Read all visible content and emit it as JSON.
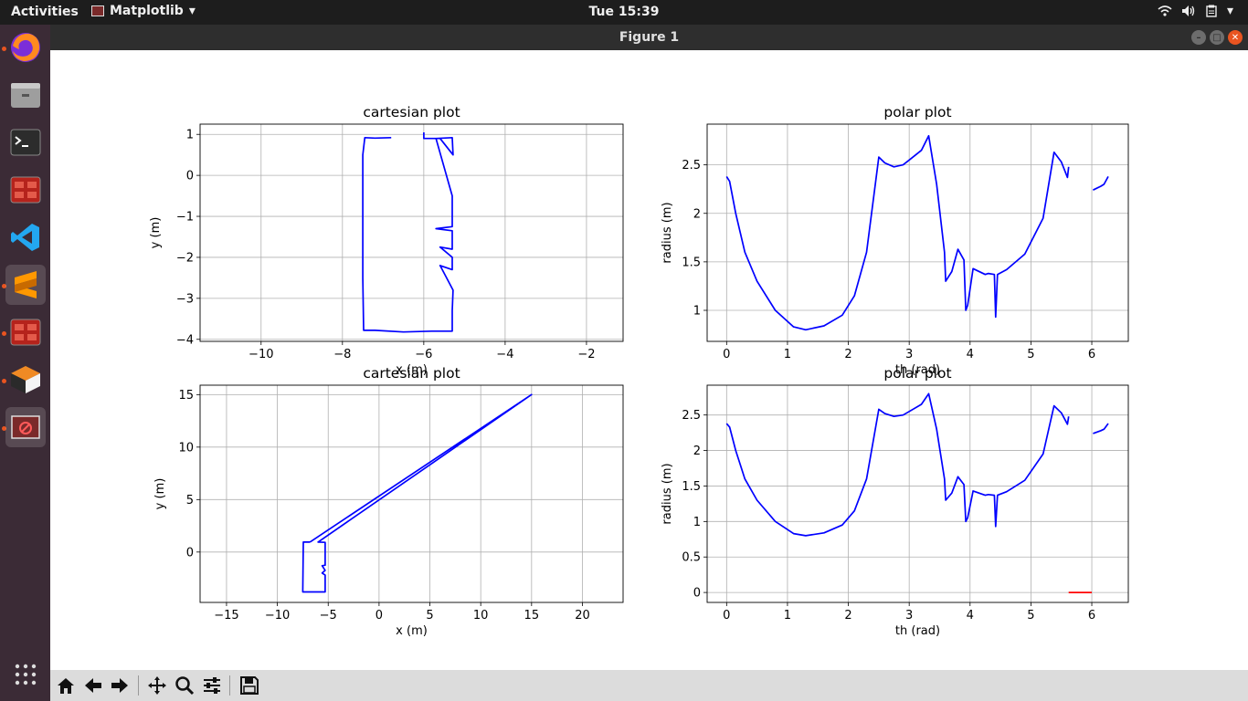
{
  "topbar": {
    "activities": "Activities",
    "app_menu": "Matplotlib",
    "clock": "Tue 15:39"
  },
  "window": {
    "title": "Figure 1"
  },
  "dock": {
    "items": [
      "firefox-icon",
      "files-icon",
      "terminal-icon",
      "app-icon",
      "vscode-icon",
      "sublime-icon",
      "app-icon-2",
      "box-icon",
      "matplotlib-icon",
      "apps-grid-icon"
    ]
  },
  "toolbar": {
    "buttons": [
      "home-icon",
      "back-icon",
      "forward-icon",
      "pan-icon",
      "zoom-icon",
      "configure-icon",
      "save-icon"
    ]
  },
  "chart_data": [
    {
      "type": "line",
      "title": "cartesian plot",
      "xlabel": "x (m)",
      "ylabel": "y (m)",
      "xlim": [
        -11.5,
        -1.1
      ],
      "ylim": [
        -4.05,
        1.25
      ],
      "xticks": [
        -10,
        -8,
        -6,
        -4,
        -2
      ],
      "yticks": [
        1,
        0,
        -1,
        -2,
        -3,
        -4
      ],
      "grid": true,
      "series": [
        {
          "color": "#0000ff",
          "x": [
            -6.8,
            -7.2,
            -7.45,
            -7.5,
            -7.5,
            -7.5,
            -7.48,
            -7.2,
            -6.5,
            -5.8,
            -5.3,
            -5.3,
            -5.28,
            -5.6,
            -5.3,
            -5.3,
            -5.6,
            -5.3,
            -5.3,
            -5.7,
            -5.3,
            -5.3,
            -5.7,
            -5.3,
            -5.3,
            -5.28,
            -5.6,
            -6.0,
            -6.0
          ],
          "y": [
            0.92,
            0.91,
            0.92,
            0.5,
            -1.0,
            -2.5,
            -3.78,
            -3.78,
            -3.82,
            -3.8,
            -3.8,
            -3.3,
            -2.8,
            -2.2,
            -2.3,
            -2.0,
            -1.75,
            -1.8,
            -1.35,
            -1.3,
            -1.25,
            -0.5,
            0.9,
            0.92,
            0.92,
            0.5,
            0.9,
            0.9,
            1.05
          ]
        }
      ]
    },
    {
      "type": "line",
      "title": "polar plot",
      "xlabel": "th (rad)",
      "ylabel": "radius (m)",
      "xlim": [
        -0.32,
        6.6
      ],
      "ylim": [
        0.68,
        2.92
      ],
      "xticks": [
        0,
        1,
        2,
        3,
        4,
        5,
        6
      ],
      "yticks": [
        1.0,
        1.5,
        2.0,
        2.5
      ],
      "grid": true,
      "series": [
        {
          "color": "#0000ff",
          "x": [
            0.0,
            0.05,
            0.15,
            0.3,
            0.5,
            0.8,
            1.1,
            1.3,
            1.6,
            1.9,
            2.1,
            2.3,
            2.5,
            2.6,
            2.75,
            2.9,
            3.0,
            3.2,
            3.32,
            3.45,
            3.58,
            3.6,
            3.7,
            3.8,
            3.9,
            3.93,
            3.96,
            4.05,
            4.25,
            4.3,
            4.4,
            4.42,
            4.45,
            4.6,
            4.9,
            5.2,
            5.38,
            5.5,
            5.6,
            5.62
          ],
          "y": [
            2.38,
            2.33,
            2.0,
            1.6,
            1.3,
            1.0,
            0.83,
            0.8,
            0.84,
            0.95,
            1.15,
            1.6,
            2.58,
            2.52,
            2.48,
            2.5,
            2.55,
            2.65,
            2.8,
            2.3,
            1.6,
            1.3,
            1.4,
            1.63,
            1.52,
            1.0,
            1.05,
            1.43,
            1.37,
            1.38,
            1.37,
            0.93,
            1.37,
            1.42,
            1.58,
            1.95,
            2.63,
            2.53,
            2.37,
            2.48
          ]
        },
        {
          "color": "#0000ff",
          "x": [
            6.02,
            6.15,
            6.2,
            6.27
          ],
          "y": [
            2.24,
            2.28,
            2.3,
            2.38
          ]
        }
      ]
    },
    {
      "type": "line",
      "title": "cartesian plot",
      "xlabel": "x (m)",
      "ylabel": "y (m)",
      "xlim": [
        -17.6,
        24.0
      ],
      "ylim": [
        -4.8,
        15.9
      ],
      "xticks": [
        -15,
        -10,
        -5,
        0,
        5,
        10,
        15,
        20
      ],
      "yticks": [
        15,
        10,
        5,
        0
      ],
      "grid": true,
      "series": [
        {
          "color": "#0000ff",
          "x": [
            -6.8,
            -7.45,
            -7.5,
            -7.5,
            -5.3,
            -5.3,
            -5.6,
            -5.3,
            -5.6,
            -5.3,
            -5.3,
            -6.0,
            15.0,
            -6.8
          ],
          "y": [
            0.95,
            0.95,
            -3.78,
            -3.8,
            -3.8,
            -2.2,
            -2.0,
            -1.75,
            -1.3,
            -1.25,
            0.92,
            0.95,
            15.0,
            0.95
          ]
        }
      ]
    },
    {
      "type": "line",
      "title": "polar plot",
      "xlabel": "th (rad)",
      "ylabel": "radius (m)",
      "xlim": [
        -0.32,
        6.6
      ],
      "ylim": [
        -0.14,
        2.92
      ],
      "xticks": [
        0,
        1,
        2,
        3,
        4,
        5,
        6
      ],
      "yticks": [
        0.0,
        0.5,
        1.0,
        1.5,
        2.0,
        2.5
      ],
      "grid": true,
      "series": [
        {
          "color": "#0000ff",
          "x": [
            0.0,
            0.05,
            0.15,
            0.3,
            0.5,
            0.8,
            1.1,
            1.3,
            1.6,
            1.9,
            2.1,
            2.3,
            2.5,
            2.6,
            2.75,
            2.9,
            3.0,
            3.2,
            3.32,
            3.45,
            3.58,
            3.6,
            3.7,
            3.8,
            3.9,
            3.93,
            3.96,
            4.05,
            4.25,
            4.3,
            4.4,
            4.42,
            4.45,
            4.6,
            4.9,
            5.2,
            5.38,
            5.5,
            5.6,
            5.62
          ],
          "y": [
            2.38,
            2.33,
            2.0,
            1.6,
            1.3,
            1.0,
            0.83,
            0.8,
            0.84,
            0.95,
            1.15,
            1.6,
            2.58,
            2.52,
            2.48,
            2.5,
            2.55,
            2.65,
            2.8,
            2.3,
            1.6,
            1.3,
            1.4,
            1.63,
            1.52,
            1.0,
            1.05,
            1.43,
            1.37,
            1.38,
            1.37,
            0.93,
            1.37,
            1.42,
            1.58,
            1.95,
            2.63,
            2.53,
            2.37,
            2.48
          ]
        },
        {
          "color": "#0000ff",
          "x": [
            6.02,
            6.15,
            6.2,
            6.27
          ],
          "y": [
            2.24,
            2.28,
            2.3,
            2.38
          ]
        },
        {
          "color": "#ff0000",
          "x": [
            5.62,
            6.0
          ],
          "y": [
            0.0,
            0.0
          ]
        }
      ]
    }
  ]
}
